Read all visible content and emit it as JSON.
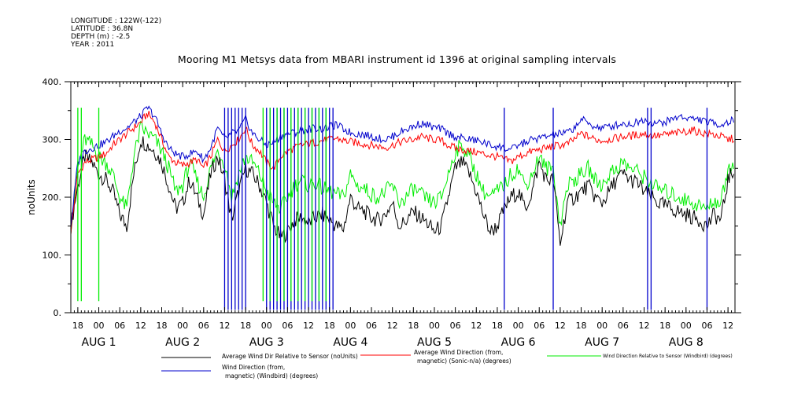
{
  "meta": [
    "LONGITUDE : 122W(-122)",
    "LATITUDE : 36.8N",
    "DEPTH (m) : -2.5",
    "YEAR : 2011"
  ],
  "chart_data": {
    "type": "line",
    "title": "Mooring M1 Metsys data from MBARI instrument id 1396 at original sampling intervals",
    "ylabel": "noUnits",
    "ylim": [
      0,
      400
    ],
    "yticks": [
      "0.",
      "100.",
      "200.",
      "300.",
      "400."
    ],
    "x_unit": "hours since 2011-07-31 16:00",
    "xlim": [
      0,
      190
    ],
    "x_hour_labels": [
      {
        "x": 2,
        "label": "18"
      },
      {
        "x": 8,
        "label": "00"
      },
      {
        "x": 14,
        "label": "06"
      },
      {
        "x": 20,
        "label": "12"
      },
      {
        "x": 26,
        "label": "18"
      },
      {
        "x": 32,
        "label": "00"
      },
      {
        "x": 38,
        "label": "06"
      },
      {
        "x": 44,
        "label": "12"
      },
      {
        "x": 50,
        "label": "18"
      },
      {
        "x": 56,
        "label": "00"
      },
      {
        "x": 62,
        "label": "06"
      },
      {
        "x": 68,
        "label": "12"
      },
      {
        "x": 74,
        "label": "18"
      },
      {
        "x": 80,
        "label": "00"
      },
      {
        "x": 86,
        "label": "06"
      },
      {
        "x": 92,
        "label": "12"
      },
      {
        "x": 98,
        "label": "18"
      },
      {
        "x": 104,
        "label": "00"
      },
      {
        "x": 110,
        "label": "06"
      },
      {
        "x": 116,
        "label": "12"
      },
      {
        "x": 122,
        "label": "18"
      },
      {
        "x": 128,
        "label": "00"
      },
      {
        "x": 134,
        "label": "06"
      },
      {
        "x": 140,
        "label": "12"
      },
      {
        "x": 146,
        "label": "18"
      },
      {
        "x": 152,
        "label": "00"
      },
      {
        "x": 158,
        "label": "06"
      },
      {
        "x": 164,
        "label": "12"
      },
      {
        "x": 170,
        "label": "18"
      },
      {
        "x": 176,
        "label": "00"
      },
      {
        "x": 182,
        "label": "06"
      },
      {
        "x": 188,
        "label": "12"
      }
    ],
    "x_day_labels": [
      {
        "x": 8,
        "label": "AUG  1"
      },
      {
        "x": 32,
        "label": "AUG  2"
      },
      {
        "x": 56,
        "label": "AUG  3"
      },
      {
        "x": 80,
        "label": "AUG  4"
      },
      {
        "x": 104,
        "label": "AUG  5"
      },
      {
        "x": 128,
        "label": "AUG  6"
      },
      {
        "x": 152,
        "label": "AUG  7"
      },
      {
        "x": 176,
        "label": "AUG  8"
      }
    ],
    "series": [
      {
        "name": "Average Wind Dir Relative to Sensor (noUnits)",
        "color": "#000000",
        "x": [
          0,
          2,
          4,
          6,
          8,
          10,
          12,
          14,
          16,
          18,
          20,
          22,
          24,
          26,
          28,
          30,
          32,
          34,
          36,
          38,
          40,
          42,
          44,
          46,
          48,
          50,
          52,
          54,
          56,
          58,
          60,
          62,
          64,
          66,
          68,
          70,
          72,
          74,
          76,
          78,
          80,
          82,
          84,
          86,
          88,
          90,
          92,
          94,
          96,
          98,
          100,
          102,
          104,
          106,
          108,
          110,
          112,
          114,
          116,
          118,
          120,
          122,
          124,
          126,
          128,
          130,
          132,
          134,
          136,
          138,
          140,
          142,
          144,
          146,
          148,
          150,
          152,
          154,
          156,
          158,
          160,
          162,
          164,
          166,
          168,
          170,
          172,
          174,
          176,
          178,
          180,
          182,
          184,
          186,
          188,
          190
        ],
        "values": [
          150,
          220,
          270,
          260,
          240,
          230,
          210,
          170,
          150,
          240,
          300,
          290,
          280,
          260,
          220,
          180,
          190,
          230,
          200,
          170,
          240,
          270,
          230,
          160,
          210,
          250,
          240,
          220,
          190,
          150,
          130,
          140,
          160,
          165,
          155,
          165,
          170,
          160,
          150,
          145,
          200,
          180,
          175,
          165,
          160,
          170,
          190,
          150,
          160,
          175,
          165,
          155,
          140,
          150,
          200,
          250,
          260,
          240,
          210,
          170,
          140,
          150,
          180,
          200,
          210,
          180,
          210,
          260,
          230,
          230,
          120,
          190,
          200,
          210,
          220,
          200,
          190,
          210,
          230,
          240,
          230,
          225,
          210,
          200,
          190,
          185,
          180,
          175,
          170,
          165,
          160,
          150,
          170,
          160,
          230,
          250
        ]
      },
      {
        "name": "Average Wind Direction (from, magnetic) (Sonic-n/a) (degrees)",
        "color": "#ff0000",
        "x": [
          0,
          2,
          4,
          6,
          8,
          10,
          12,
          14,
          16,
          18,
          20,
          22,
          24,
          26,
          28,
          30,
          32,
          34,
          36,
          38,
          40,
          42,
          44,
          46,
          48,
          50,
          52,
          54,
          56,
          58,
          60,
          62,
          64,
          66,
          68,
          70,
          72,
          74,
          76,
          78,
          80,
          82,
          84,
          86,
          88,
          90,
          92,
          94,
          96,
          98,
          100,
          102,
          104,
          106,
          108,
          110,
          112,
          114,
          116,
          118,
          120,
          122,
          124,
          126,
          128,
          130,
          132,
          134,
          136,
          138,
          140,
          142,
          144,
          146,
          148,
          150,
          152,
          154,
          156,
          158,
          160,
          162,
          164,
          166,
          168,
          170,
          172,
          174,
          176,
          178,
          180,
          182,
          184,
          186,
          188,
          190
        ],
        "values": [
          140,
          240,
          260,
          265,
          270,
          275,
          290,
          300,
          310,
          320,
          330,
          345,
          330,
          300,
          270,
          260,
          255,
          260,
          265,
          250,
          270,
          300,
          280,
          290,
          300,
          320,
          290,
          280,
          260,
          250,
          270,
          280,
          285,
          290,
          292,
          295,
          298,
          300,
          302,
          298,
          296,
          294,
          292,
          290,
          288,
          286,
          290,
          295,
          298,
          300,
          305,
          302,
          300,
          298,
          290,
          285,
          282,
          280,
          278,
          275,
          272,
          270,
          265,
          262,
          270,
          275,
          280,
          282,
          285,
          288,
          290,
          292,
          300,
          310,
          305,
          300,
          298,
          300,
          302,
          305,
          306,
          308,
          310,
          308,
          306,
          308,
          310,
          312,
          314,
          316,
          312,
          310,
          308,
          305,
          300,
          302
        ]
      },
      {
        "name": "Wind Direction Relative to Sensor (Windbird) (degrees)",
        "color": "#00ee00",
        "x": [
          0,
          2,
          4,
          6,
          8,
          10,
          12,
          14,
          16,
          18,
          20,
          22,
          24,
          26,
          28,
          30,
          32,
          34,
          36,
          38,
          40,
          42,
          44,
          46,
          48,
          50,
          52,
          54,
          56,
          58,
          60,
          62,
          64,
          66,
          68,
          70,
          72,
          74,
          76,
          78,
          80,
          82,
          84,
          86,
          88,
          90,
          92,
          94,
          96,
          98,
          100,
          102,
          104,
          106,
          108,
          110,
          112,
          114,
          116,
          118,
          120,
          122,
          124,
          126,
          128,
          130,
          132,
          134,
          136,
          138,
          140,
          142,
          144,
          146,
          148,
          150,
          152,
          154,
          156,
          158,
          160,
          162,
          164,
          166,
          168,
          170,
          172,
          174,
          176,
          178,
          180,
          182,
          184,
          186,
          188,
          190
        ],
        "values": [
          150,
          250,
          300,
          290,
          270,
          260,
          240,
          200,
          180,
          270,
          320,
          310,
          300,
          280,
          250,
          210,
          220,
          260,
          230,
          200,
          250,
          280,
          260,
          200,
          240,
          270,
          260,
          240,
          210,
          190,
          180,
          200,
          220,
          230,
          220,
          225,
          215,
          210,
          205,
          200,
          240,
          220,
          215,
          205,
          200,
          210,
          220,
          190,
          200,
          215,
          205,
          195,
          190,
          200,
          240,
          280,
          290,
          270,
          240,
          210,
          200,
          210,
          220,
          240,
          250,
          220,
          240,
          270,
          250,
          250,
          150,
          220,
          230,
          240,
          250,
          230,
          220,
          240,
          250,
          260,
          250,
          245,
          235,
          225,
          215,
          210,
          205,
          200,
          195,
          190,
          185,
          180,
          195,
          190,
          250,
          260
        ]
      },
      {
        "name": "Wind Direction (from, magnetic) (Windbird) (degrees)",
        "color": "#0000cc",
        "x": [
          0,
          2,
          4,
          6,
          8,
          10,
          12,
          14,
          16,
          18,
          20,
          22,
          24,
          26,
          28,
          30,
          32,
          34,
          36,
          38,
          40,
          42,
          44,
          46,
          48,
          50,
          52,
          54,
          56,
          58,
          60,
          62,
          64,
          66,
          68,
          70,
          72,
          74,
          76,
          78,
          80,
          82,
          84,
          86,
          88,
          90,
          92,
          94,
          96,
          98,
          100,
          102,
          104,
          106,
          108,
          110,
          112,
          114,
          116,
          118,
          120,
          122,
          124,
          126,
          128,
          130,
          132,
          134,
          136,
          138,
          140,
          142,
          144,
          146,
          148,
          150,
          152,
          154,
          156,
          158,
          160,
          162,
          164,
          166,
          168,
          170,
          172,
          174,
          176,
          178,
          180,
          182,
          184,
          186,
          188,
          190
        ],
        "values": [
          150,
          260,
          280,
          285,
          290,
          295,
          305,
          315,
          320,
          330,
          340,
          355,
          340,
          310,
          285,
          275,
          270,
          275,
          280,
          265,
          285,
          320,
          300,
          310,
          315,
          335,
          310,
          300,
          290,
          295,
          305,
          310,
          312,
          315,
          318,
          320,
          318,
          322,
          325,
          318,
          312,
          310,
          308,
          305,
          302,
          300,
          305,
          312,
          318,
          322,
          328,
          325,
          320,
          318,
          310,
          305,
          302,
          300,
          298,
          295,
          290,
          288,
          285,
          282,
          290,
          295,
          300,
          302,
          305,
          308,
          310,
          312,
          320,
          335,
          328,
          322,
          320,
          322,
          325,
          328,
          326,
          330,
          335,
          330,
          328,
          330,
          335,
          340,
          338,
          336,
          334,
          330,
          328,
          326,
          330,
          335
        ]
      }
    ],
    "spikes": [
      {
        "series": 3,
        "x": [
          44,
          45,
          46,
          47,
          48,
          49,
          50,
          56,
          57,
          58,
          59,
          60,
          61,
          62,
          63,
          64,
          65,
          66,
          67,
          68,
          69,
          70,
          71,
          72,
          73,
          74,
          75,
          124,
          138,
          165,
          166,
          182
        ],
        "low": 5,
        "high": 355
      },
      {
        "series": 2,
        "x": [
          2,
          3,
          8,
          55,
          57,
          59,
          61,
          63,
          65,
          67,
          69,
          71,
          73
        ],
        "low": 20,
        "high": 355
      }
    ]
  }
}
